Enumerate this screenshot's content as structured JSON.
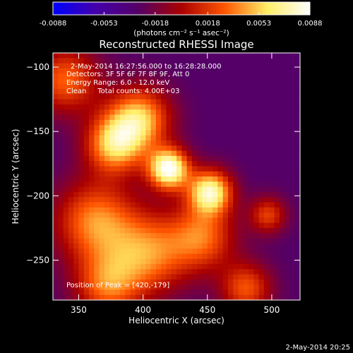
{
  "chart_data": {
    "type": "heatmap",
    "title": "Reconstructed RHESSI Image",
    "xlabel": "Heliocentric X (arcsec)",
    "ylabel": "Heliocentric Y (arcsec)",
    "xlim": [
      330,
      522
    ],
    "ylim": [
      -281,
      -89
    ],
    "xticks": [
      350,
      400,
      450,
      500
    ],
    "yticks": [
      -100,
      -150,
      -200,
      -250
    ],
    "colorbar": {
      "min": -0.0088,
      "max": 0.0088,
      "tick_values": [
        -0.0088,
        -0.0053,
        -0.0018,
        0.0018,
        0.0053,
        0.0088
      ],
      "tick_labels": [
        "-0.0088",
        "-0.0053",
        "-0.0018",
        "0.0018",
        "0.0053",
        "0.0088"
      ],
      "unit_label": "(photons cm⁻² s⁻¹ asec⁻²)",
      "colors": [
        "#0000ff",
        "#4400aa",
        "#550066",
        "#aa0000",
        "#ff5500",
        "#ffee66",
        "#ffffff"
      ]
    },
    "sources": [
      {
        "x": 420,
        "y": -179,
        "peak": 0.0088,
        "sigma": 11
      },
      {
        "x": 452,
        "y": -197,
        "peak": 0.0072,
        "sigma": 12
      },
      {
        "x": 378,
        "y": -160,
        "peak": 0.0052,
        "sigma": 16
      },
      {
        "x": 397,
        "y": -140,
        "peak": 0.005,
        "sigma": 17
      },
      {
        "x": 363,
        "y": -220,
        "peak": 0.0038,
        "sigma": 22
      },
      {
        "x": 404,
        "y": -245,
        "peak": 0.0035,
        "sigma": 22
      },
      {
        "x": 340,
        "y": -110,
        "peak": 0.003,
        "sigma": 18
      },
      {
        "x": 372,
        "y": -270,
        "peak": 0.0028,
        "sigma": 18
      },
      {
        "x": 446,
        "y": -232,
        "peak": 0.003,
        "sigma": 18
      },
      {
        "x": 480,
        "y": -272,
        "peak": 0.0026,
        "sigma": 14
      },
      {
        "x": 497,
        "y": -215,
        "peak": 0.002,
        "sigma": 10
      }
    ],
    "background_level": -0.003,
    "annotations": [
      "2-May-2014 16:27:56.000 to 16:28:28.000",
      "Detectors: 3F 5F 6F 7F 8F 9F, Att 0",
      "Energy Range: 6.0 - 12.0 keV",
      "Clean     Total counts: 4.00E+03",
      "Position of Peak = [420,-179]"
    ],
    "footer_timestamp": "2-May-2014 20:25"
  }
}
